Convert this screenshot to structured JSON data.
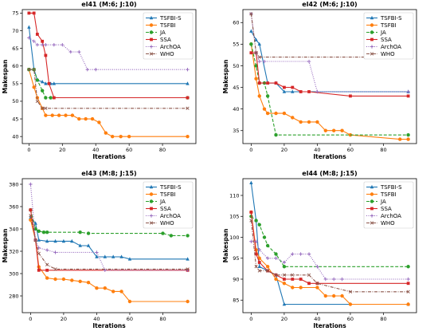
{
  "colors": {
    "TSFBI-S": "#1f77b4",
    "TSFBI": "#ff7f0e",
    "JA": "#2ca02c",
    "SSA": "#d62728",
    "ArchOA": "#9467bd",
    "WHO": "#8c564b"
  },
  "chart_data": [
    {
      "type": "line",
      "title": "el41 (M:6; J:10)",
      "xlabel": "Iterations",
      "ylabel": "Makespan",
      "xlim": [
        -4,
        100
      ],
      "ylim": [
        38,
        76
      ],
      "xticks": [
        0,
        20,
        40,
        60,
        80
      ],
      "yticks": [
        40,
        45,
        50,
        55,
        60,
        65,
        70,
        75
      ],
      "legend": "top-right",
      "series": [
        {
          "name": "TSFBI-S",
          "style": "solid",
          "marker": "triangle",
          "x": [
            0,
            3,
            5,
            8,
            10,
            13,
            15,
            95
          ],
          "y": [
            71,
            59,
            56,
            55.5,
            55,
            55,
            55,
            55
          ]
        },
        {
          "name": "TSFBI",
          "style": "solid",
          "marker": "circle",
          "x": [
            0,
            3,
            5,
            8,
            10,
            14,
            18,
            22,
            26,
            30,
            34,
            38,
            42,
            46,
            50,
            55,
            60,
            95
          ],
          "y": [
            59,
            54,
            51,
            48,
            46,
            46,
            46,
            46,
            46,
            45,
            45,
            45,
            44,
            41,
            40,
            40,
            40,
            40
          ]
        },
        {
          "name": "JA",
          "style": "dashed",
          "marker": "circle",
          "x": [
            0,
            3,
            5,
            8,
            10,
            13,
            95
          ],
          "y": [
            59,
            59,
            56,
            53,
            51,
            51,
            51
          ]
        },
        {
          "name": "SSA",
          "style": "solid",
          "marker": "square",
          "x": [
            0,
            3,
            5,
            8,
            10,
            12,
            15,
            95
          ],
          "y": [
            75,
            75,
            69,
            67,
            63,
            55,
            51,
            51
          ]
        },
        {
          "name": "ArchOA",
          "style": "dotted",
          "marker": "plus",
          "x": [
            0,
            3,
            5,
            8,
            10,
            15,
            20,
            25,
            30,
            35,
            40,
            95
          ],
          "y": [
            68,
            67,
            66,
            66,
            66,
            66,
            66,
            64,
            64,
            59,
            59,
            59
          ]
        },
        {
          "name": "WHO",
          "style": "dashdot",
          "marker": "x",
          "x": [
            0,
            3,
            5,
            8,
            10,
            95
          ],
          "y": [
            59,
            59,
            50,
            48,
            48,
            48
          ]
        }
      ]
    },
    {
      "type": "line",
      "title": "el42 (M:6; J:10)",
      "xlabel": "Iterations",
      "ylabel": "Makespan",
      "xlim": [
        -5,
        100
      ],
      "ylim": [
        32,
        63
      ],
      "xticks": [
        0,
        20,
        40,
        60,
        80
      ],
      "yticks": [
        35,
        40,
        45,
        50,
        55,
        60
      ],
      "legend": "top-right",
      "series": [
        {
          "name": "TSFBI-S",
          "style": "solid",
          "marker": "triangle",
          "x": [
            0,
            3,
            5,
            10,
            15,
            20,
            25,
            95
          ],
          "y": [
            58,
            56,
            55,
            46,
            46,
            44,
            44,
            44
          ]
        },
        {
          "name": "TSFBI",
          "style": "solid",
          "marker": "circle",
          "x": [
            0,
            3,
            5,
            8,
            10,
            15,
            20,
            25,
            30,
            35,
            40,
            45,
            50,
            55,
            60,
            90,
            95
          ],
          "y": [
            55,
            47,
            43,
            40,
            39,
            39,
            39,
            38,
            37,
            37,
            37,
            35,
            35,
            35,
            34,
            33,
            33
          ]
        },
        {
          "name": "JA",
          "style": "dashed",
          "marker": "circle",
          "x": [
            0,
            3,
            5,
            8,
            10,
            15,
            95
          ],
          "y": [
            55,
            50,
            46,
            46,
            43,
            34,
            34
          ]
        },
        {
          "name": "SSA",
          "style": "solid",
          "marker": "square",
          "x": [
            0,
            3,
            5,
            10,
            15,
            20,
            25,
            30,
            35,
            60,
            95
          ],
          "y": [
            53,
            53,
            46,
            46,
            46,
            45,
            45,
            44,
            44,
            43,
            43
          ]
        },
        {
          "name": "ArchOA",
          "style": "dotted",
          "marker": "plus",
          "x": [
            0,
            3,
            5,
            8,
            35,
            40,
            95
          ],
          "y": [
            62,
            53,
            51,
            51,
            51,
            44,
            44
          ]
        },
        {
          "name": "WHO",
          "style": "dashdot",
          "marker": "x",
          "x": [
            0,
            3,
            5,
            95
          ],
          "y": [
            62,
            53,
            52,
            52
          ]
        }
      ]
    },
    {
      "type": "line",
      "title": "el43 (M:8; J:15)",
      "xlabel": "Iterations",
      "ylabel": "Makespan",
      "xlim": [
        -5,
        100
      ],
      "ylim": [
        265,
        385
      ],
      "xticks": [
        0,
        20,
        40,
        60,
        80
      ],
      "yticks": [
        280,
        300,
        320,
        340,
        360,
        380
      ],
      "legend": "top-right",
      "series": [
        {
          "name": "TSFBI-S",
          "style": "solid",
          "marker": "triangle",
          "x": [
            0,
            3,
            5,
            10,
            15,
            20,
            25,
            30,
            35,
            40,
            45,
            50,
            55,
            60,
            95
          ],
          "y": [
            350,
            345,
            330,
            329,
            329,
            329,
            329,
            325,
            325,
            315,
            315,
            315,
            315,
            313,
            313
          ]
        },
        {
          "name": "TSFBI",
          "style": "solid",
          "marker": "circle",
          "x": [
            0,
            3,
            5,
            10,
            15,
            20,
            25,
            30,
            35,
            40,
            45,
            50,
            55,
            60,
            95
          ],
          "y": [
            348,
            330,
            306,
            296,
            295,
            295,
            294,
            293,
            292,
            287,
            287,
            284,
            284,
            275,
            275
          ]
        },
        {
          "name": "JA",
          "style": "dashed",
          "marker": "circle",
          "x": [
            0,
            3,
            5,
            8,
            10,
            30,
            35,
            80,
            85,
            95
          ],
          "y": [
            357,
            340,
            338,
            337,
            337,
            337,
            336,
            336,
            334,
            334
          ]
        },
        {
          "name": "SSA",
          "style": "solid",
          "marker": "square",
          "x": [
            0,
            3,
            5,
            10,
            95
          ],
          "y": [
            357,
            330,
            303,
            303,
            303
          ]
        },
        {
          "name": "ArchOA",
          "style": "dotted",
          "marker": "plus",
          "x": [
            0,
            3,
            5,
            10,
            15,
            40,
            45,
            95
          ],
          "y": [
            380,
            330,
            323,
            321,
            319,
            319,
            303,
            303
          ]
        },
        {
          "name": "WHO",
          "style": "dashdot",
          "marker": "x",
          "x": [
            0,
            3,
            5,
            10,
            15,
            95
          ],
          "y": [
            352,
            330,
            318,
            308,
            304,
            304
          ]
        }
      ]
    },
    {
      "type": "line",
      "title": "el44 (M:8; J:15)",
      "xlabel": "Iterations",
      "ylabel": "Makespan",
      "xlim": [
        -5,
        100
      ],
      "ylim": [
        82,
        114
      ],
      "xticks": [
        0,
        20,
        40,
        60,
        80
      ],
      "yticks": [
        85,
        90,
        95,
        100,
        105,
        110
      ],
      "legend": "top-right",
      "series": [
        {
          "name": "TSFBI-S",
          "style": "solid",
          "marker": "triangle",
          "x": [
            0,
            3,
            5,
            10,
            15,
            20,
            95
          ],
          "y": [
            113,
            104,
            93,
            92,
            91,
            84,
            84
          ]
        },
        {
          "name": "TSFBI",
          "style": "solid",
          "marker": "circle",
          "x": [
            0,
            3,
            5,
            10,
            15,
            20,
            25,
            30,
            40,
            45,
            50,
            55,
            60,
            95
          ],
          "y": [
            106,
            97,
            95,
            93,
            90,
            89,
            88,
            88,
            88,
            86,
            86,
            86,
            84,
            84
          ]
        },
        {
          "name": "JA",
          "style": "dashed",
          "marker": "circle",
          "x": [
            0,
            3,
            5,
            8,
            10,
            15,
            20,
            95
          ],
          "y": [
            105,
            104,
            103,
            100,
            98,
            96,
            93,
            93
          ]
        },
        {
          "name": "SSA",
          "style": "solid",
          "marker": "square",
          "x": [
            0,
            3,
            5,
            10,
            15,
            20,
            25,
            30,
            35,
            40,
            95
          ],
          "y": [
            106,
            96,
            94,
            92,
            91,
            90,
            90,
            90,
            89,
            89,
            89
          ]
        },
        {
          "name": "ArchOA",
          "style": "dotted",
          "marker": "plus",
          "x": [
            0,
            3,
            5,
            10,
            15,
            20,
            25,
            30,
            35,
            40,
            45,
            50,
            55,
            95
          ],
          "y": [
            99,
            99,
            97,
            95,
            95,
            94,
            96,
            96,
            96,
            93,
            90,
            90,
            90,
            90
          ]
        },
        {
          "name": "WHO",
          "style": "dashdot",
          "marker": "x",
          "x": [
            0,
            3,
            5,
            10,
            15,
            20,
            25,
            35,
            40,
            60,
            95
          ],
          "y": [
            104,
            93,
            92,
            92,
            91,
            91,
            91,
            91,
            89,
            87,
            87
          ]
        }
      ]
    }
  ]
}
